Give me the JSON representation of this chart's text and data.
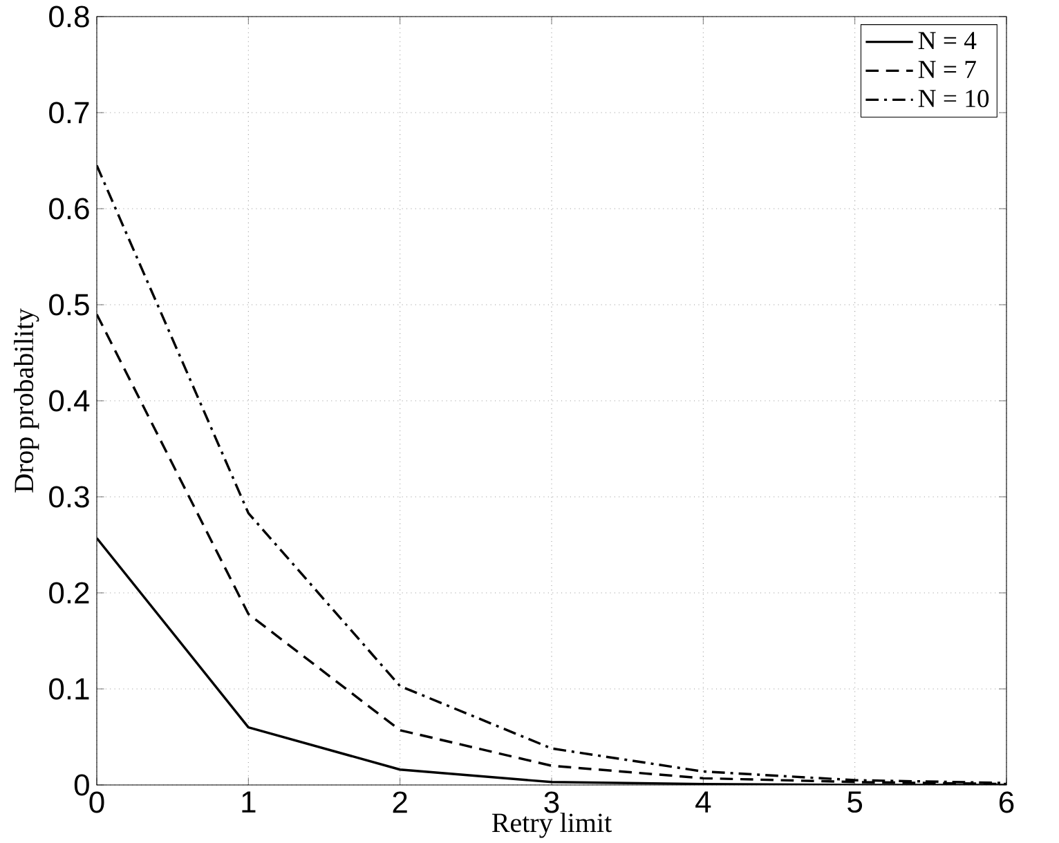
{
  "chart_data": {
    "type": "line",
    "xlabel": "Retry limit",
    "ylabel": "Drop probability",
    "x": [
      0,
      1,
      2,
      3,
      4,
      5,
      6
    ],
    "series": [
      {
        "name": "N = 4",
        "color": "#000000",
        "line_style": "solid",
        "values": [
          0.257,
          0.06,
          0.016,
          0.003,
          0.001,
          0.0,
          0.0
        ]
      },
      {
        "name": "N = 7",
        "color": "#000000",
        "line_style": "dashed",
        "values": [
          0.49,
          0.178,
          0.057,
          0.02,
          0.007,
          0.003,
          0.001
        ]
      },
      {
        "name": "N = 10",
        "color": "#000000",
        "line_style": "dashdot",
        "values": [
          0.645,
          0.283,
          0.103,
          0.038,
          0.014,
          0.005,
          0.002
        ]
      }
    ],
    "xlim": [
      0,
      6
    ],
    "ylim": [
      0,
      0.8
    ],
    "xticks": [
      0,
      1,
      2,
      3,
      4,
      5,
      6
    ],
    "yticks": [
      0,
      0.1,
      0.2,
      0.3,
      0.4,
      0.5,
      0.6,
      0.7,
      0.8
    ],
    "grid": true,
    "legend": "top right",
    "marker": "none"
  }
}
